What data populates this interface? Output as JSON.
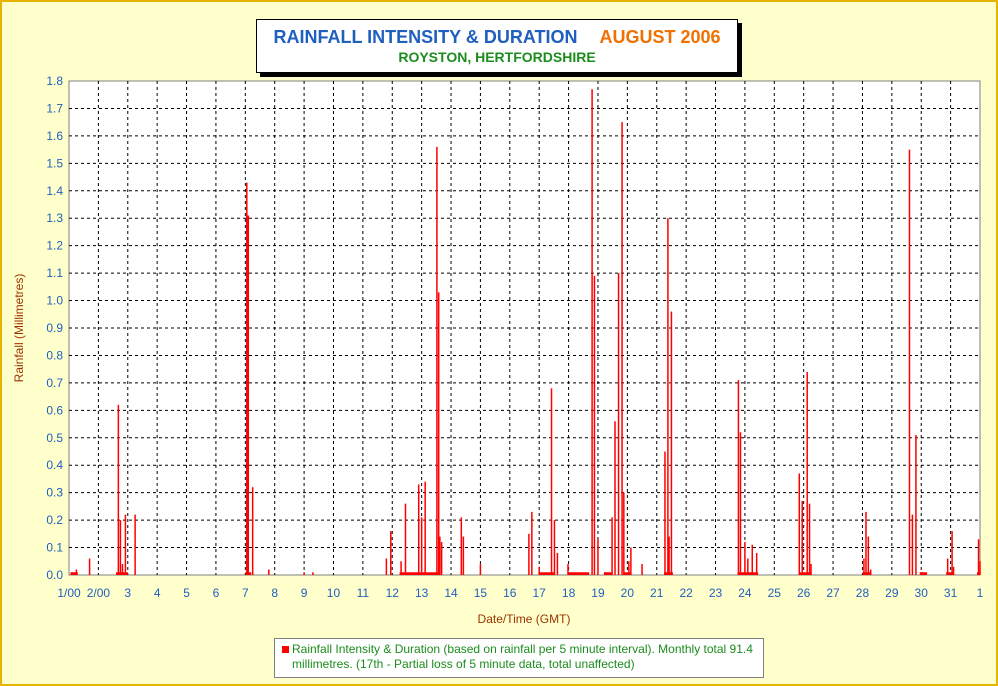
{
  "header": {
    "title_main": "RAINFALL INTENSITY & DURATION",
    "title_date": "AUGUST 2006",
    "subtitle": "ROYSTON, HERTFORDSHIRE"
  },
  "legend": {
    "text": "Rainfall Intensity & Duration (based on rainfall per 5 minute interval). Monthly total 91.4 millimetres. (17th - Partial loss of 5 minute data, total unaffected)"
  },
  "colors": {
    "background": "#ffffcc",
    "border": "#e8b400",
    "series": "#ff0000",
    "title_blue": "#1f5fbf",
    "title_orange": "#f07000",
    "title_green": "#1c8c1c",
    "axis_text": "#1f5fbf",
    "axis_label": "#993300"
  },
  "chart_data": {
    "type": "bar",
    "title": "RAINFALL INTENSITY & DURATION AUGUST 2006",
    "subtitle": "ROYSTON, HERTFORDSHIRE",
    "xlabel": "Date/Time (GMT)",
    "ylabel": "Rainfall (Millimetres)",
    "ylim": [
      0,
      1.8
    ],
    "xlim": [
      1,
      32
    ],
    "grid": true,
    "legend_position": "bottom",
    "x_tick_values": [
      1,
      2,
      3,
      4,
      5,
      6,
      7,
      8,
      9,
      10,
      11,
      12,
      13,
      14,
      15,
      16,
      17,
      18,
      19,
      20,
      21,
      22,
      23,
      24,
      25,
      26,
      27,
      28,
      29,
      30,
      31,
      32
    ],
    "x_tick_labels": [
      "1/00",
      "2/00",
      "3",
      "4",
      "5",
      "6",
      "7",
      "8",
      "9",
      "10",
      "11",
      "12",
      "13",
      "14",
      "15",
      "16",
      "17",
      "18",
      "19",
      "20",
      "21",
      "22",
      "23",
      "24",
      "25",
      "26",
      "27",
      "28",
      "29",
      "30",
      "31",
      "1"
    ],
    "y_ticks": [
      "0.0",
      "0.1",
      "0.2",
      "0.3",
      "0.4",
      "0.5",
      "0.6",
      "0.7",
      "0.8",
      "0.9",
      "1.0",
      "1.1",
      "1.2",
      "1.3",
      "1.4",
      "1.5",
      "1.6",
      "1.7",
      "1.8"
    ],
    "series": [
      {
        "name": "Rainfall Intensity & Duration",
        "color": "#ff0000",
        "points": [
          [
            1.1,
            0.01
          ],
          [
            1.25,
            0.02
          ],
          [
            1.7,
            0.06
          ],
          [
            2.68,
            0.62
          ],
          [
            2.75,
            0.2
          ],
          [
            2.82,
            0.04
          ],
          [
            2.92,
            0.22
          ],
          [
            3.25,
            0.22
          ],
          [
            7.05,
            1.43
          ],
          [
            7.1,
            1.31
          ],
          [
            7.25,
            0.32
          ],
          [
            7.8,
            0.02
          ],
          [
            9.0,
            0.01
          ],
          [
            9.3,
            0.01
          ],
          [
            11.8,
            0.06
          ],
          [
            11.95,
            0.16
          ],
          [
            12.3,
            0.05
          ],
          [
            12.45,
            0.26
          ],
          [
            12.9,
            0.33
          ],
          [
            13.0,
            0.21
          ],
          [
            13.12,
            0.34
          ],
          [
            13.52,
            1.56
          ],
          [
            13.58,
            1.03
          ],
          [
            13.62,
            0.14
          ],
          [
            13.68,
            0.12
          ],
          [
            14.35,
            0.21
          ],
          [
            14.42,
            0.14
          ],
          [
            15.0,
            0.04
          ],
          [
            16.65,
            0.15
          ],
          [
            16.75,
            0.23
          ],
          [
            17.0,
            0.03
          ],
          [
            17.42,
            0.68
          ],
          [
            17.52,
            0.2
          ],
          [
            17.62,
            0.08
          ],
          [
            17.98,
            0.04
          ],
          [
            18.8,
            1.77
          ],
          [
            18.88,
            1.09
          ],
          [
            19.0,
            0.13
          ],
          [
            19.25,
            0.01
          ],
          [
            19.48,
            0.21
          ],
          [
            19.58,
            0.56
          ],
          [
            19.7,
            1.1
          ],
          [
            19.82,
            1.65
          ],
          [
            19.88,
            0.3
          ],
          [
            20.05,
            0.05
          ],
          [
            20.12,
            0.1
          ],
          [
            20.5,
            0.04
          ],
          [
            21.28,
            0.45
          ],
          [
            21.38,
            1.3
          ],
          [
            21.42,
            0.14
          ],
          [
            21.5,
            0.96
          ],
          [
            23.78,
            0.71
          ],
          [
            23.85,
            0.52
          ],
          [
            24.0,
            0.12
          ],
          [
            24.1,
            0.06
          ],
          [
            24.25,
            0.11
          ],
          [
            24.4,
            0.08
          ],
          [
            25.85,
            0.37
          ],
          [
            25.95,
            0.27
          ],
          [
            26.12,
            0.74
          ],
          [
            26.2,
            0.26
          ],
          [
            26.25,
            0.04
          ],
          [
            28.05,
            0.06
          ],
          [
            28.12,
            0.23
          ],
          [
            28.2,
            0.14
          ],
          [
            28.28,
            0.02
          ],
          [
            29.6,
            1.55
          ],
          [
            29.7,
            0.22
          ],
          [
            29.82,
            0.51
          ],
          [
            30.0,
            0.01
          ],
          [
            30.9,
            0.06
          ],
          [
            31.05,
            0.16
          ],
          [
            31.1,
            0.03
          ],
          [
            31.95,
            0.13
          ],
          [
            32.0,
            0.05
          ]
        ],
        "runs": [
          [
            1.05,
            1.3,
            0.01
          ],
          [
            2.6,
            3.0,
            0.01
          ],
          [
            7.0,
            7.2,
            0.01
          ],
          [
            12.25,
            13.6,
            0.01
          ],
          [
            17.0,
            17.5,
            0.01
          ],
          [
            18.0,
            18.7,
            0.01
          ],
          [
            19.2,
            19.5,
            0.01
          ],
          [
            19.9,
            20.1,
            0.01
          ],
          [
            21.25,
            21.55,
            0.01
          ],
          [
            23.75,
            24.45,
            0.01
          ],
          [
            25.85,
            26.25,
            0.01
          ],
          [
            28.0,
            28.3,
            0.01
          ],
          [
            29.95,
            30.2,
            0.01
          ],
          [
            30.85,
            31.1,
            0.01
          ],
          [
            31.9,
            32.0,
            0.01
          ]
        ]
      }
    ]
  }
}
